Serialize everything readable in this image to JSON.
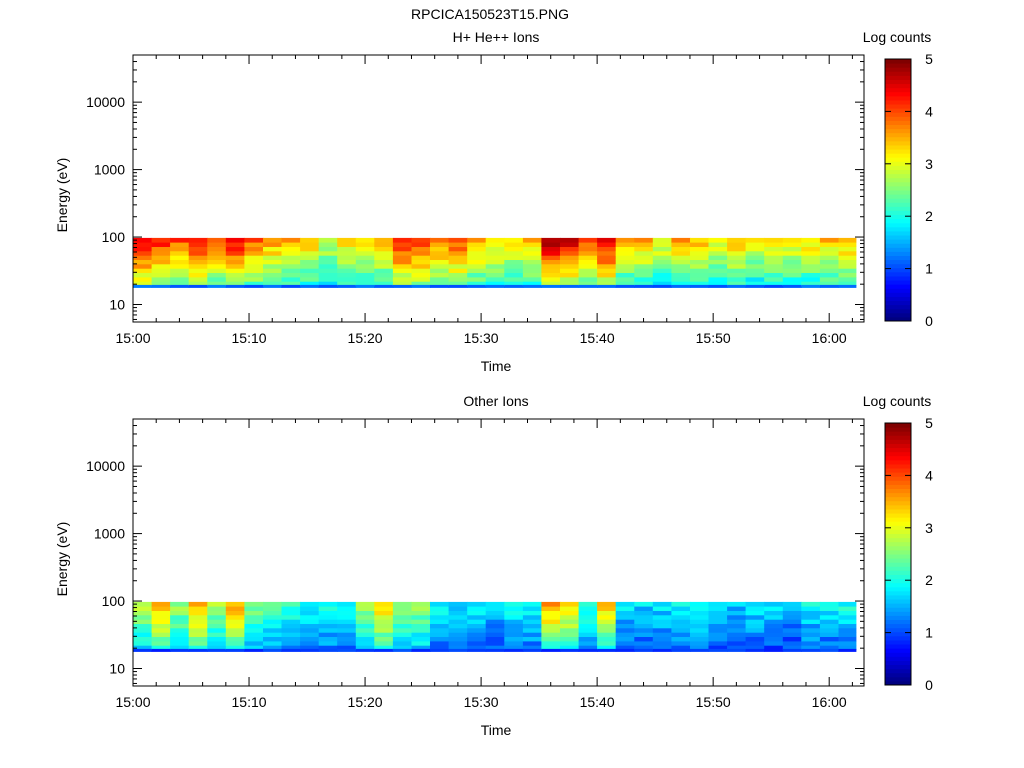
{
  "page_title": "RPCICA150523T15.PNG",
  "chart_data": [
    {
      "type": "heatmap",
      "title": "H+ He++ Ions",
      "xlabel": "Time",
      "ylabel": "Energy (eV)",
      "y_scale": "log",
      "ylim": [
        5.5,
        50000
      ],
      "x_range_minutes": [
        0,
        63
      ],
      "x_ticks": [
        {
          "t": 0,
          "label": "15:00"
        },
        {
          "t": 10,
          "label": "15:10"
        },
        {
          "t": 20,
          "label": "15:20"
        },
        {
          "t": 30,
          "label": "15:30"
        },
        {
          "t": 40,
          "label": "15:40"
        },
        {
          "t": 50,
          "label": "15:50"
        },
        {
          "t": 60,
          "label": "16:00"
        }
      ],
      "y_ticks": [
        {
          "v": 10,
          "label": "10"
        },
        {
          "v": 100,
          "label": "100"
        },
        {
          "v": 1000,
          "label": "1000"
        },
        {
          "v": 10000,
          "label": "10000"
        }
      ],
      "colorbar": {
        "label": "Log counts",
        "min": 0,
        "max": 5,
        "ticks": [
          "0",
          "1",
          "2",
          "3",
          "4",
          "5"
        ]
      },
      "energy_range_eV": [
        19,
        97
      ],
      "time_block_starts_min": [
        0,
        1.6,
        3.2,
        4.8,
        6.4,
        8.0,
        9.6,
        11.2,
        12.8,
        14.4,
        16.0,
        17.6,
        19.2,
        20.8,
        22.4,
        24.0,
        25.6,
        27.2,
        28.8,
        30.4,
        32.0,
        33.6,
        35.2,
        36.8,
        38.4,
        40.0,
        41.6,
        43.2,
        44.8,
        46.4,
        48.0,
        49.6,
        51.2,
        52.8,
        54.4,
        56.0,
        57.6,
        59.2,
        60.8
      ],
      "block_log_counts_top": [
        4.6,
        4.3,
        4.0,
        4.4,
        3.9,
        4.4,
        3.9,
        3.6,
        3.6,
        3.4,
        3.0,
        3.3,
        3.2,
        3.5,
        4.4,
        4.2,
        3.9,
        4.1,
        3.6,
        3.4,
        3.3,
        3.5,
        4.8,
        4.6,
        4.1,
        4.6,
        3.4,
        3.5,
        3.2,
        3.6,
        3.5,
        3.2,
        3.4,
        3.1,
        3.4,
        3.2,
        3.3,
        3.4,
        3.5
      ],
      "low_energy_line_log_counts": 1.1
    },
    {
      "type": "heatmap",
      "title": "Other Ions",
      "xlabel": "Time",
      "ylabel": "Energy (eV)",
      "y_scale": "log",
      "ylim": [
        5.5,
        50000
      ],
      "x_range_minutes": [
        0,
        63
      ],
      "x_ticks": [
        {
          "t": 0,
          "label": "15:00"
        },
        {
          "t": 10,
          "label": "15:10"
        },
        {
          "t": 20,
          "label": "15:20"
        },
        {
          "t": 30,
          "label": "15:30"
        },
        {
          "t": 40,
          "label": "15:40"
        },
        {
          "t": 50,
          "label": "15:50"
        },
        {
          "t": 60,
          "label": "16:00"
        }
      ],
      "y_ticks": [
        {
          "v": 10,
          "label": "10"
        },
        {
          "v": 100,
          "label": "100"
        },
        {
          "v": 1000,
          "label": "1000"
        },
        {
          "v": 10000,
          "label": "10000"
        }
      ],
      "colorbar": {
        "label": "Log counts",
        "min": 0,
        "max": 5,
        "ticks": [
          "0",
          "1",
          "2",
          "3",
          "4",
          "5"
        ]
      },
      "energy_range_eV": [
        19,
        97
      ],
      "time_block_starts_min": [
        0,
        1.6,
        3.2,
        4.8,
        6.4,
        8.0,
        9.6,
        11.2,
        12.8,
        14.4,
        16.0,
        17.6,
        19.2,
        20.8,
        22.4,
        24.0,
        25.6,
        27.2,
        28.8,
        30.4,
        32.0,
        33.6,
        35.2,
        36.8,
        38.4,
        40.0,
        41.6,
        43.2,
        44.8,
        46.4,
        48.0,
        49.6,
        51.2,
        52.8,
        54.4,
        56.0,
        57.6,
        59.2,
        60.8
      ],
      "block_log_counts_top": [
        2.9,
        3.6,
        2.7,
        3.6,
        2.8,
        3.6,
        2.5,
        2.4,
        2.1,
        2.0,
        2.1,
        1.9,
        2.8,
        3.4,
        2.6,
        2.7,
        1.9,
        1.8,
        1.9,
        1.7,
        2.0,
        2.0,
        3.6,
        3.3,
        2.2,
        3.4,
        1.8,
        1.7,
        1.8,
        1.9,
        2.0,
        1.8,
        1.6,
        1.8,
        1.7,
        1.6,
        1.9,
        1.8,
        2.0
      ],
      "low_energy_line_log_counts": 0.9
    }
  ]
}
